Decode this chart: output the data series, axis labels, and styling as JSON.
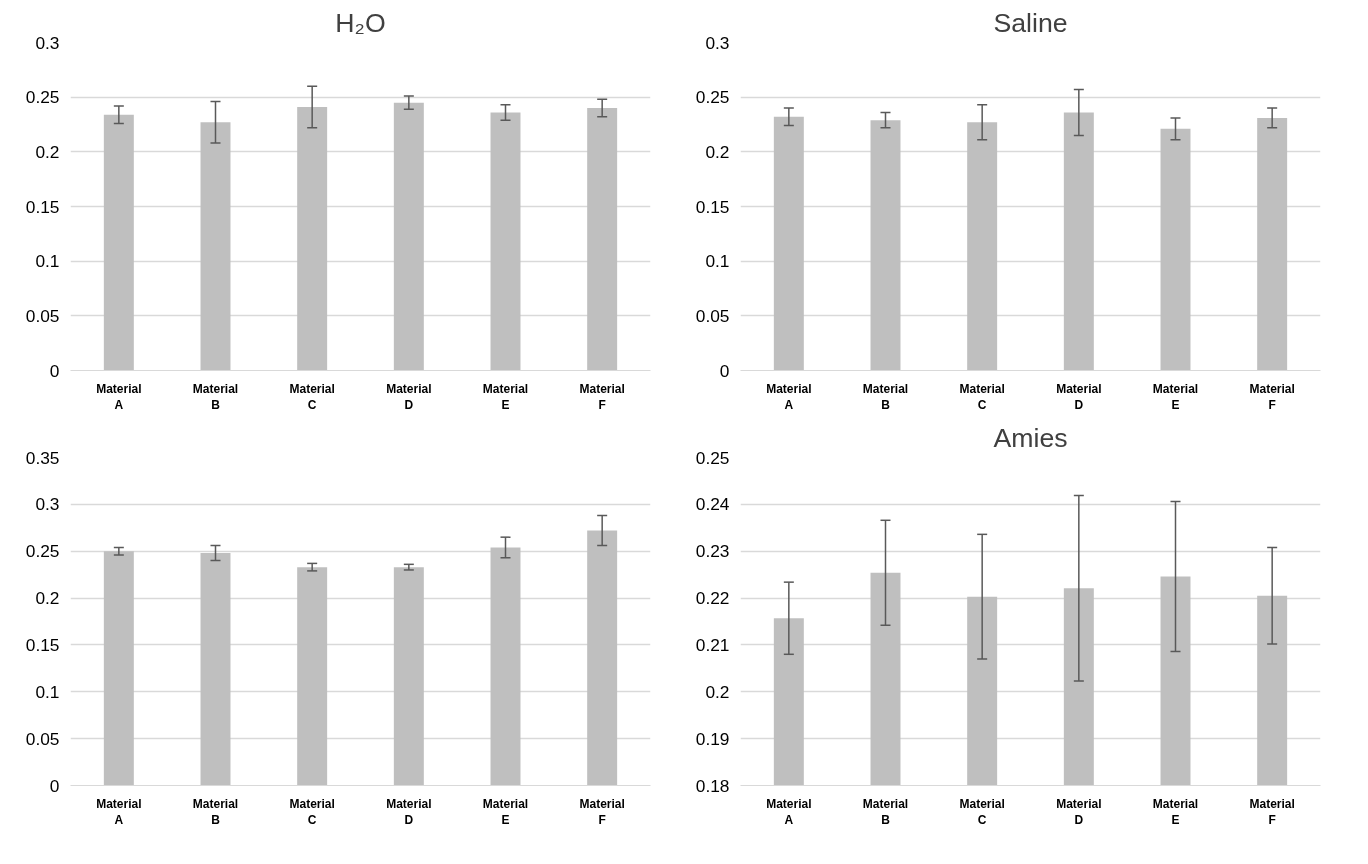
{
  "chart_data": [
    {
      "type": "bar",
      "title": "H₂O",
      "categories": [
        "Material A",
        "Material B",
        "Material C",
        "Material D",
        "Material E",
        "Material F"
      ],
      "color": "#bfbfbf",
      "values": [
        0.234,
        0.227,
        0.241,
        0.245,
        0.236,
        0.24
      ],
      "errors": [
        0.008,
        0.019,
        0.019,
        0.006,
        0.007,
        0.008
      ],
      "ylim": [
        0,
        0.3
      ],
      "yticks": [
        0,
        0.05,
        0.1,
        0.15,
        0.2,
        0.25,
        0.3
      ],
      "grid": "y"
    },
    {
      "type": "bar",
      "title": "Saline",
      "categories": [
        "Material A",
        "Material B",
        "Material C",
        "Material D",
        "Material E",
        "Material F"
      ],
      "color": "#bfbfbf",
      "values": [
        0.232,
        0.229,
        0.227,
        0.236,
        0.221,
        0.231
      ],
      "errors": [
        0.008,
        0.007,
        0.016,
        0.021,
        0.01,
        0.009
      ],
      "ylim": [
        0,
        0.3
      ],
      "yticks": [
        0,
        0.05,
        0.1,
        0.15,
        0.2,
        0.25,
        0.3
      ],
      "grid": "y"
    },
    {
      "type": "bar",
      "categories": [
        "Material A",
        "Material B",
        "Material C",
        "Material D",
        "Material E",
        "Material F"
      ],
      "color": "#bfbfbf",
      "values": [
        0.25,
        0.248,
        0.233,
        0.233,
        0.254,
        0.272
      ],
      "errors": [
        0.004,
        0.008,
        0.004,
        0.003,
        0.011,
        0.016
      ],
      "ylim": [
        0,
        0.35
      ],
      "yticks": [
        0,
        0.05,
        0.1,
        0.15,
        0.2,
        0.25,
        0.3,
        0.35
      ],
      "grid": "y"
    },
    {
      "type": "bar",
      "title": "Amies",
      "categories": [
        "Material A",
        "Material B",
        "Material C",
        "Material D",
        "Material E",
        "Material F"
      ],
      "color": "#bfbfbf",
      "values": [
        0.2157,
        0.2254,
        0.2203,
        0.2221,
        0.2246,
        0.2205
      ],
      "errors": [
        0.0077,
        0.0112,
        0.0133,
        0.0198,
        0.016,
        0.0103
      ],
      "ylim": [
        0.18,
        0.25
      ],
      "yticks": [
        0.18,
        0.19,
        0.2,
        0.21,
        0.22,
        0.23,
        0.24,
        0.25
      ],
      "grid": "y"
    }
  ]
}
